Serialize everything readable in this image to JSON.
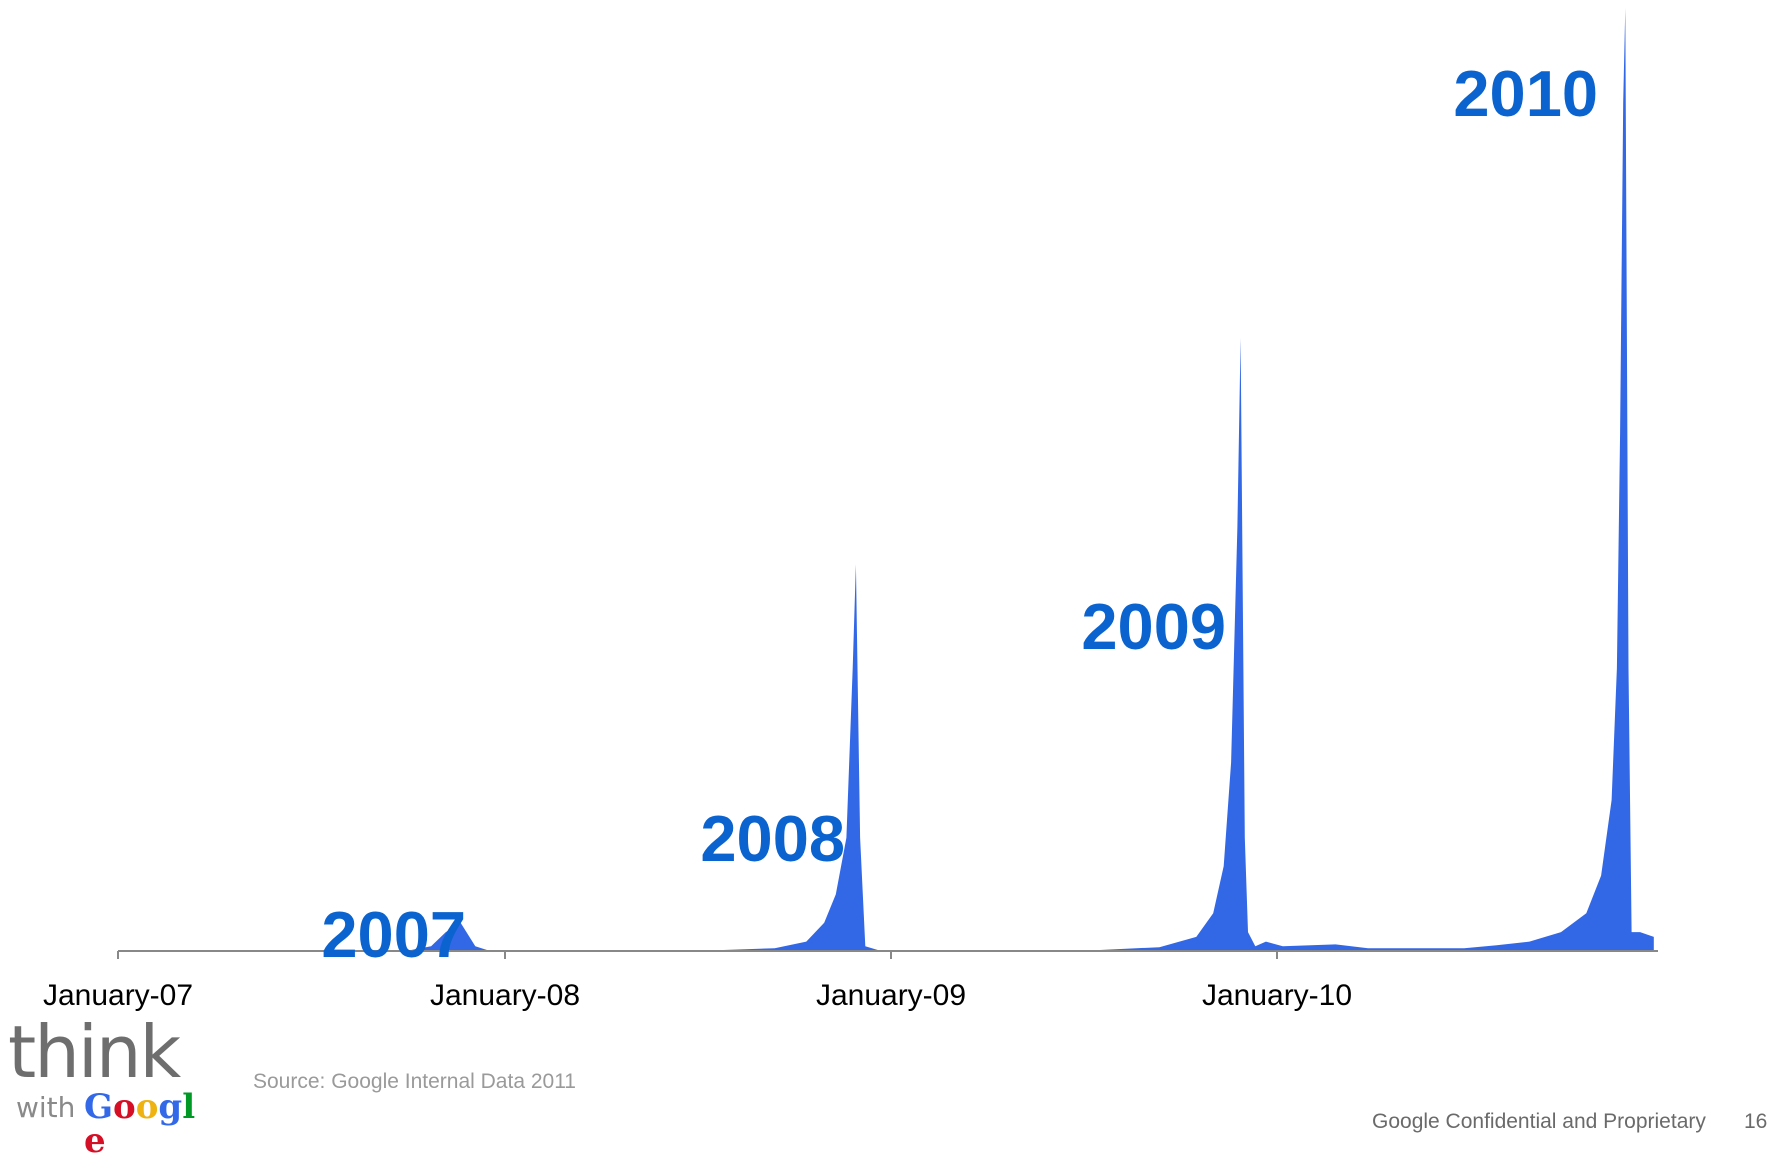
{
  "chart_data": {
    "type": "area",
    "x_ticks": [
      "January-07",
      "January-08",
      "January-09",
      "January-10"
    ],
    "annotations": [
      "2007",
      "2008",
      "2009",
      "2010"
    ],
    "series": [
      {
        "points": [
          [
            "2007-01-01",
            0
          ],
          [
            "2007-10-01",
            0
          ],
          [
            "2007-10-25",
            0.5
          ],
          [
            "2007-11-08",
            2
          ],
          [
            "2007-11-22",
            3
          ],
          [
            "2007-12-06",
            0.5
          ],
          [
            "2007-12-20",
            0
          ],
          [
            "2008-07-01",
            0
          ],
          [
            "2008-09-15",
            0.3
          ],
          [
            "2008-10-15",
            1
          ],
          [
            "2008-11-01",
            3
          ],
          [
            "2008-11-12",
            6
          ],
          [
            "2008-11-22",
            12
          ],
          [
            "2008-11-28",
            30
          ],
          [
            "2008-12-01",
            41
          ],
          [
            "2008-12-05",
            12
          ],
          [
            "2008-12-10",
            0.5
          ],
          [
            "2008-12-25",
            0
          ],
          [
            "2009-07-01",
            0
          ],
          [
            "2009-09-15",
            0.4
          ],
          [
            "2009-10-20",
            1.5
          ],
          [
            "2009-11-05",
            4
          ],
          [
            "2009-11-15",
            9
          ],
          [
            "2009-11-22",
            20
          ],
          [
            "2009-11-28",
            45
          ],
          [
            "2009-12-01",
            65
          ],
          [
            "2009-12-05",
            12
          ],
          [
            "2009-12-08",
            2
          ],
          [
            "2009-12-15",
            0.5
          ],
          [
            "2009-12-25",
            1
          ],
          [
            "2010-01-10",
            0.5
          ],
          [
            "2010-03-01",
            0.7
          ],
          [
            "2010-04-01",
            0.3
          ],
          [
            "2010-07-01",
            0.3
          ],
          [
            "2010-08-01",
            0.6
          ],
          [
            "2010-09-01",
            1
          ],
          [
            "2010-10-01",
            2
          ],
          [
            "2010-10-25",
            4
          ],
          [
            "2010-11-08",
            8
          ],
          [
            "2010-11-18",
            16
          ],
          [
            "2010-11-23",
            30
          ],
          [
            "2010-11-26",
            55
          ],
          [
            "2010-11-29",
            90
          ],
          [
            "2010-12-01",
            100
          ],
          [
            "2010-12-04",
            30
          ],
          [
            "2010-12-07",
            2
          ],
          [
            "2010-12-15",
            2
          ],
          [
            "2010-12-28",
            1.5
          ]
        ]
      }
    ],
    "color": "#3267e6"
  },
  "source": "Source: Google Internal Data 2011",
  "footer": {
    "confidential": "Google Confidential and Proprietary",
    "page_number": "16"
  },
  "logo": {
    "think": "think",
    "with": "with",
    "google": "Google"
  }
}
